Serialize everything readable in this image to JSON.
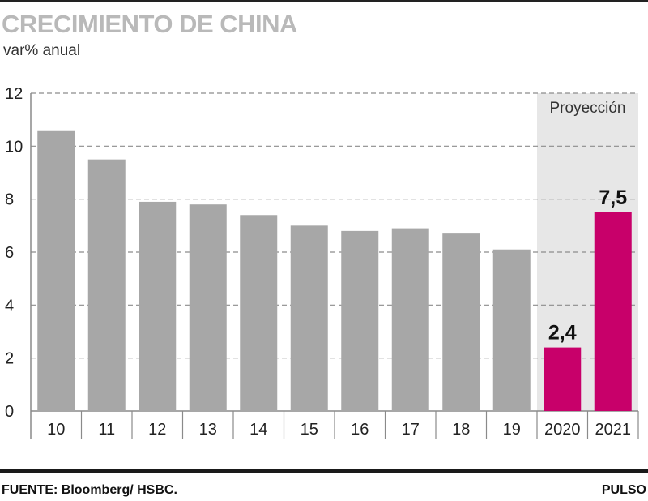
{
  "header": {
    "title": "CRECIMIENTO DE CHINA",
    "subtitle": "var% anual"
  },
  "footer": {
    "source": "FUENTE: Bloomberg/ HSBC.",
    "brand": "PULSO"
  },
  "colors": {
    "bar_gray": "#a7a7a7",
    "bar_highlight": "#c8006a",
    "projection_band": "#e7e7e7",
    "gridline": "#8c8c8c"
  },
  "chart_data": {
    "type": "bar",
    "categories": [
      "10",
      "11",
      "12",
      "13",
      "14",
      "15",
      "16",
      "17",
      "18",
      "19",
      "2020",
      "2021"
    ],
    "values": [
      10.6,
      9.5,
      7.9,
      7.8,
      7.4,
      7.0,
      6.8,
      6.9,
      6.7,
      6.1,
      2.4,
      7.5
    ],
    "highlight": [
      "2020",
      "2021"
    ],
    "data_labels": {
      "2020": "2,4",
      "2021": "7,5"
    },
    "projection": {
      "label": "Proyección",
      "categories": [
        "2020",
        "2021"
      ]
    },
    "ylim": [
      0,
      12
    ],
    "yticks": [
      0,
      2,
      4,
      6,
      8,
      10,
      12
    ],
    "grid": true,
    "title": "CRECIMIENTO DE CHINA",
    "ylabel": "var% anual",
    "xlabel": ""
  }
}
